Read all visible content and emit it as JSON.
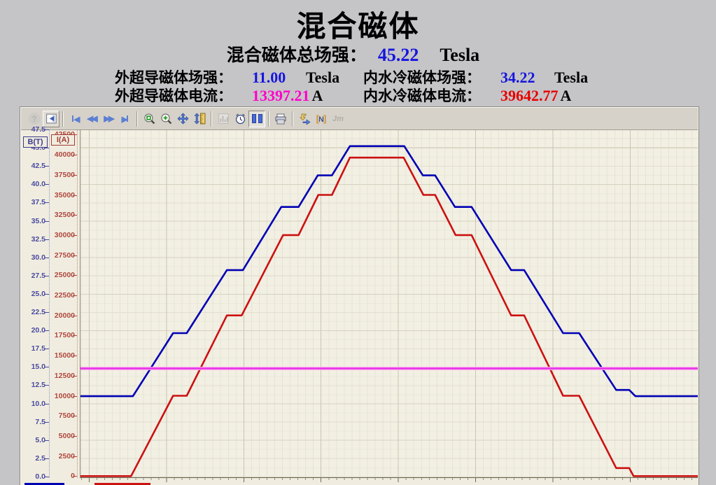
{
  "header": {
    "title": "混合磁体",
    "total_field": {
      "label": "混合磁体总场强：",
      "value": "45.22",
      "unit": "Tesla"
    },
    "sc_field": {
      "label": "外超导磁体场强：",
      "value": "11.00",
      "unit": "Tesla"
    },
    "water_field": {
      "label": "内水冷磁体场强：",
      "value": "34.22",
      "unit": "Tesla"
    },
    "sc_current": {
      "label": "外超导磁体电流：",
      "value": "13397.21",
      "unit": "A"
    },
    "water_current": {
      "label": "内水冷磁体电流：",
      "value": "39642.77",
      "unit": "A"
    }
  },
  "colors": {
    "value_blue": "#1515dd",
    "value_magenta": "#ff00cc",
    "value_red": "#e80000",
    "curve_blue": "#0000b4",
    "curve_red": "#cc1111",
    "curve_magenta": "#e632e6",
    "plot_background": "#f2efe3",
    "panel_background": "#f0ede0",
    "page_background": "#c5c4c7",
    "b_axis": "#4a4aa0",
    "i_axis": "#b0473e"
  },
  "icons": {
    "help": "?",
    "panel_arrow": "◂",
    "skip_start": "◀",
    "rewind": "◀◀",
    "fast_forward": "▶▶",
    "skip_end": "▶",
    "bracket_left": "[",
    "n_label": "N",
    "bracket_right": "]",
    "jm_label": "Jm"
  },
  "toolbar": {
    "buttons": [
      {
        "name": "help",
        "state": "disabled"
      },
      {
        "name": "panel-toggle",
        "state": "raised"
      },
      {
        "name": "skip-to-start"
      },
      {
        "name": "rewind"
      },
      {
        "name": "fast-forward"
      },
      {
        "name": "skip-to-end"
      },
      {
        "name": "zoom-reset"
      },
      {
        "name": "zoom-in"
      },
      {
        "name": "pan"
      },
      {
        "name": "y-scale"
      },
      {
        "name": "chart-settings",
        "state": "disabled"
      },
      {
        "name": "time-axis"
      },
      {
        "name": "pause",
        "state": "pressed"
      },
      {
        "name": "print"
      },
      {
        "name": "export"
      },
      {
        "name": "cursor-n"
      },
      {
        "name": "jm",
        "state": "disabled"
      }
    ]
  },
  "chart_data": {
    "type": "line",
    "grid": true,
    "legend_position": "bottom-left",
    "x_axis": {
      "labels_visible": false
    },
    "y_axes": [
      {
        "id": "B",
        "label": "B(T)",
        "min": 0,
        "max": 47.5,
        "step": 2.5,
        "color": "#4a4aa0",
        "labels": [
          "47.5",
          "45.0",
          "42.5",
          "40.0",
          "37.5",
          "35.0",
          "32.5",
          "30.0",
          "27.5",
          "25.0",
          "22.5",
          "20.0",
          "17.5",
          "15.0",
          "12.5",
          "10.0",
          "7.5",
          "5.0",
          "2.5",
          "0.0"
        ]
      },
      {
        "id": "I",
        "label": "I(A)",
        "min": 0,
        "max": 42500,
        "step": 2500,
        "color": "#b0473e",
        "labels": [
          "42500",
          "40000",
          "37500",
          "35000",
          "32500",
          "30000",
          "27500",
          "25000",
          "22500",
          "20000",
          "17500",
          "15000",
          "12500",
          "10000",
          "7500",
          "5000",
          "2500",
          "0"
        ]
      }
    ],
    "series": [
      {
        "name": "total-field-B",
        "axis": "B",
        "color": "#0000b4",
        "width": 2.6,
        "points": [
          [
            0,
            11
          ],
          [
            0.086,
            11
          ],
          [
            0.151,
            19.63
          ],
          [
            0.173,
            19.63
          ],
          [
            0.238,
            28.26
          ],
          [
            0.264,
            28.26
          ],
          [
            0.326,
            36.9
          ],
          [
            0.354,
            36.9
          ],
          [
            0.385,
            41.22
          ],
          [
            0.408,
            41.22
          ],
          [
            0.437,
            45.22
          ],
          [
            0.525,
            45.22
          ],
          [
            0.555,
            41.22
          ],
          [
            0.575,
            41.22
          ],
          [
            0.607,
            36.9
          ],
          [
            0.634,
            36.9
          ],
          [
            0.698,
            28.26
          ],
          [
            0.719,
            28.26
          ],
          [
            0.782,
            19.63
          ],
          [
            0.808,
            19.63
          ],
          [
            0.868,
            11.86
          ],
          [
            0.889,
            11.86
          ],
          [
            0.899,
            11
          ],
          [
            1,
            11
          ]
        ]
      },
      {
        "name": "water-magnet-current",
        "axis": "I",
        "color": "#cc1111",
        "width": 2.6,
        "points": [
          [
            0,
            0
          ],
          [
            0.083,
            0
          ],
          [
            0.151,
            10000
          ],
          [
            0.173,
            10000
          ],
          [
            0.238,
            20000
          ],
          [
            0.262,
            20000
          ],
          [
            0.329,
            30000
          ],
          [
            0.354,
            30000
          ],
          [
            0.386,
            35000
          ],
          [
            0.408,
            35000
          ],
          [
            0.437,
            39642.77
          ],
          [
            0.524,
            39642.77
          ],
          [
            0.556,
            35000
          ],
          [
            0.575,
            35000
          ],
          [
            0.608,
            30000
          ],
          [
            0.634,
            30000
          ],
          [
            0.698,
            20000
          ],
          [
            0.719,
            20000
          ],
          [
            0.782,
            10000
          ],
          [
            0.808,
            10000
          ],
          [
            0.868,
            1000
          ],
          [
            0.889,
            1000
          ],
          [
            0.896,
            0
          ],
          [
            1,
            0
          ]
        ]
      },
      {
        "name": "sc-magnet-current",
        "axis": "I",
        "color": "#e632e6",
        "width": 2.4,
        "halo": "#ffaaf2",
        "points": [
          [
            0,
            13397.21
          ],
          [
            1,
            13397.21
          ]
        ]
      }
    ]
  }
}
